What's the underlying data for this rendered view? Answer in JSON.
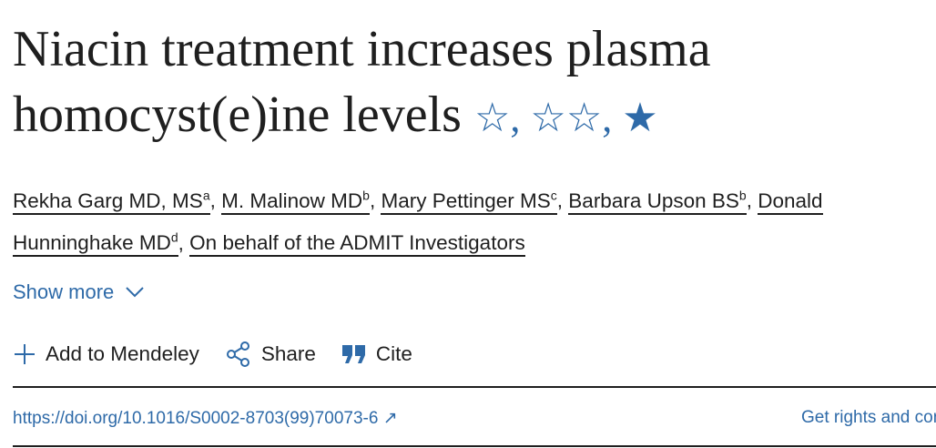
{
  "article": {
    "title": "Niacin treatment increases plasma homocyst(e)ine levels",
    "title_notes": [
      {
        "icon": "star-outline-icon",
        "glyph": "☆",
        "sep": ", "
      },
      {
        "icon": "star-outline-double-icon",
        "glyph": "☆☆",
        "sep": ", "
      },
      {
        "icon": "star-filled-icon",
        "glyph": "★",
        "sep": ""
      }
    ],
    "authors": [
      {
        "name": "Rekha Garg MD, MS",
        "sup": "a"
      },
      {
        "name": "M. Malinow MD",
        "sup": "b"
      },
      {
        "name": "Mary Pettinger MS",
        "sup": "c"
      },
      {
        "name": "Barbara Upson BS",
        "sup": "b"
      },
      {
        "name": "Donald Hunninghake MD",
        "sup": "d"
      },
      {
        "name": "On behalf of the ADMIT Investigators",
        "sup": ""
      }
    ],
    "show_more": "Show more",
    "actions": {
      "mendeley": "Add to Mendeley",
      "share": "Share",
      "cite": "Cite"
    },
    "doi": "https://doi.org/10.1016/S0002-8703(99)70073-6",
    "doi_icon": "↗",
    "rights": "Get rights and content"
  },
  "colors": {
    "accent": "#2e6aa8",
    "text": "#1f1f1f"
  }
}
